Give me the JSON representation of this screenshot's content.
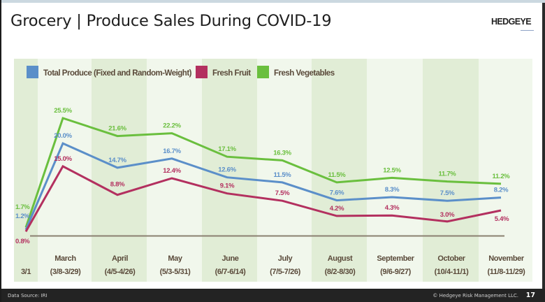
{
  "slide": {
    "title": "Grocery | Produce Sales During COVID-19",
    "logo": "HEDGEYE",
    "footer_source": "Data Source: IRI",
    "footer_copyright": "© Hedgeye Risk Management LLC.",
    "page_number": "17"
  },
  "colors": {
    "total_produce": "#5b8fc9",
    "fresh_fruit": "#b3305f",
    "fresh_vegetables": "#6abf3e",
    "band_dark": "#e1edd6",
    "band_light": "#f1f7ec",
    "baseline": "#8a8070",
    "axis_text": "#5a4a3a",
    "footer_bg": "#232323"
  },
  "chart_data": {
    "type": "line",
    "title": "",
    "xlabel": "",
    "ylabel": "",
    "ylim": [
      0,
      27
    ],
    "grid": false,
    "legend_position": "top-left",
    "categories": [
      {
        "month": "",
        "range": "3/1"
      },
      {
        "month": "March",
        "range": "(3/8-3/29)"
      },
      {
        "month": "April",
        "range": "(4/5-4/26)"
      },
      {
        "month": "May",
        "range": "(5/3-5/31)"
      },
      {
        "month": "June",
        "range": "(6/7-6/14)"
      },
      {
        "month": "July",
        "range": "(7/5-7/26)"
      },
      {
        "month": "August",
        "range": "(8/2-8/30)"
      },
      {
        "month": "September",
        "range": "(9/6-9/27)"
      },
      {
        "month": "October",
        "range": "(10/4-11/1)"
      },
      {
        "month": "November",
        "range": "(11/8-11/29)"
      }
    ],
    "series": [
      {
        "key": "fresh_vegetables",
        "name": "Fresh Vegetables",
        "values": [
          1.7,
          25.5,
          21.6,
          22.2,
          17.1,
          16.3,
          11.5,
          12.5,
          11.7,
          11.2
        ],
        "labels": [
          "1.7%",
          "25.5%",
          "21.6%",
          "22.2%",
          "17.1%",
          "16.3%",
          "11.5%",
          "12.5%",
          "11.7%",
          "11.2%"
        ]
      },
      {
        "key": "total_produce",
        "name": "Total Produce (Fixed and Random-Weight)",
        "values": [
          1.2,
          20.0,
          14.7,
          16.7,
          12.6,
          11.5,
          7.6,
          8.3,
          7.5,
          8.2
        ],
        "labels": [
          "1.2%",
          "20.0%",
          "14.7%",
          "16.7%",
          "12.6%",
          "11.5%",
          "7.6%",
          "8.3%",
          "7.5%",
          "8.2%"
        ]
      },
      {
        "key": "fresh_fruit",
        "name": "Fresh Fruit",
        "values": [
          0.8,
          15.0,
          8.8,
          12.4,
          9.1,
          7.5,
          4.2,
          4.3,
          3.0,
          5.4
        ],
        "labels": [
          "0.8%",
          "15.0%",
          "8.8%",
          "12.4%",
          "9.1%",
          "7.5%",
          "4.2%",
          "4.3%",
          "3.0%",
          "5.4%"
        ]
      }
    ],
    "legend": [
      {
        "key": "total_produce",
        "label": "Total Produce (Fixed and Random-Weight)"
      },
      {
        "key": "fresh_fruit",
        "label": "Fresh Fruit"
      },
      {
        "key": "fresh_vegetables",
        "label": "Fresh Vegetables"
      }
    ]
  }
}
